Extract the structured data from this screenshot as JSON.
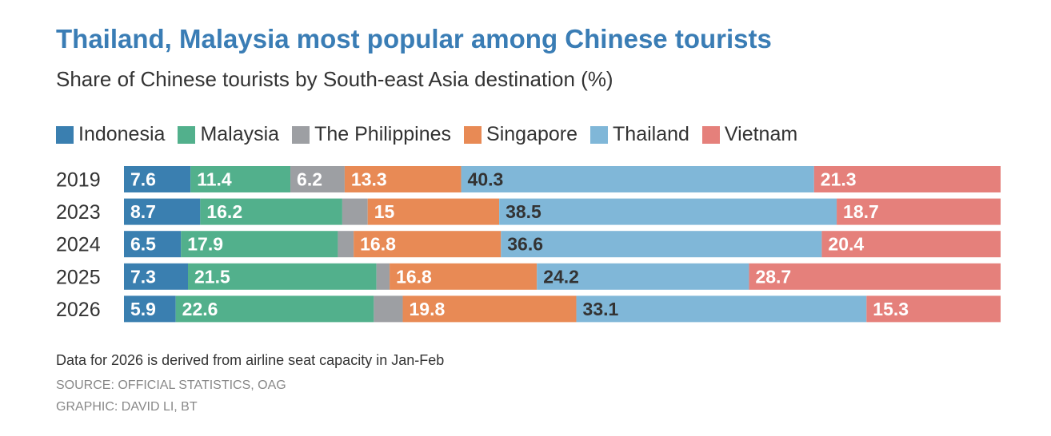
{
  "title": "Thailand, Malaysia most popular among Chinese tourists",
  "subtitle": "Share of Chinese tourists by South-east Asia destination (%)",
  "note": "Data for 2026 is derived from airline seat capacity in Jan-Feb",
  "source": "SOURCE: OFFICIAL STATISTICS, OAG",
  "graphic": "GRAPHIC: DAVID LI, BT",
  "chart_data": {
    "type": "bar",
    "orientation": "horizontal",
    "stacked": true,
    "title": "Thailand, Malaysia most popular among Chinese tourists",
    "subtitle": "Share of Chinese tourists by South-east Asia destination (%)",
    "categories": [
      "2019",
      "2023",
      "2024",
      "2025",
      "2026"
    ],
    "xlim": [
      0,
      100
    ],
    "legend_position": "top",
    "grid": false,
    "series": [
      {
        "name": "Indonesia",
        "color": "#3a7fb0",
        "label_color": "#ffffff",
        "values": [
          7.6,
          8.7,
          6.5,
          7.3,
          5.9
        ],
        "labels": [
          "7.6",
          "8.7",
          "6.5",
          "7.3",
          "5.9"
        ]
      },
      {
        "name": "Malaysia",
        "color": "#52b08c",
        "label_color": "#ffffff",
        "values": [
          11.4,
          16.2,
          17.9,
          21.5,
          22.6
        ],
        "labels": [
          "11.4",
          "16.2",
          "17.9",
          "21.5",
          "22.6"
        ]
      },
      {
        "name": "The Philippines",
        "color": "#9d9fa3",
        "label_color": "#ffffff",
        "values": [
          6.2,
          2.9,
          1.8,
          1.5,
          3.3
        ],
        "labels": [
          "6.2",
          "",
          "",
          "",
          ""
        ]
      },
      {
        "name": "Singapore",
        "color": "#e88a55",
        "label_color": "#ffffff",
        "values": [
          13.3,
          15,
          16.8,
          16.8,
          19.8
        ],
        "labels": [
          "13.3",
          "15",
          "16.8",
          "16.8",
          "19.8"
        ]
      },
      {
        "name": "Thailand",
        "color": "#80b7d8",
        "label_color": "#333333",
        "values": [
          40.3,
          38.5,
          36.6,
          24.2,
          33.1
        ],
        "labels": [
          "40.3",
          "38.5",
          "36.6",
          "24.2",
          "33.1"
        ]
      },
      {
        "name": "Vietnam",
        "color": "#e5807b",
        "label_color": "#ffffff",
        "values": [
          21.3,
          18.7,
          20.4,
          28.7,
          15.3
        ],
        "labels": [
          "21.3",
          "18.7",
          "20.4",
          "28.7",
          "15.3"
        ]
      }
    ]
  }
}
